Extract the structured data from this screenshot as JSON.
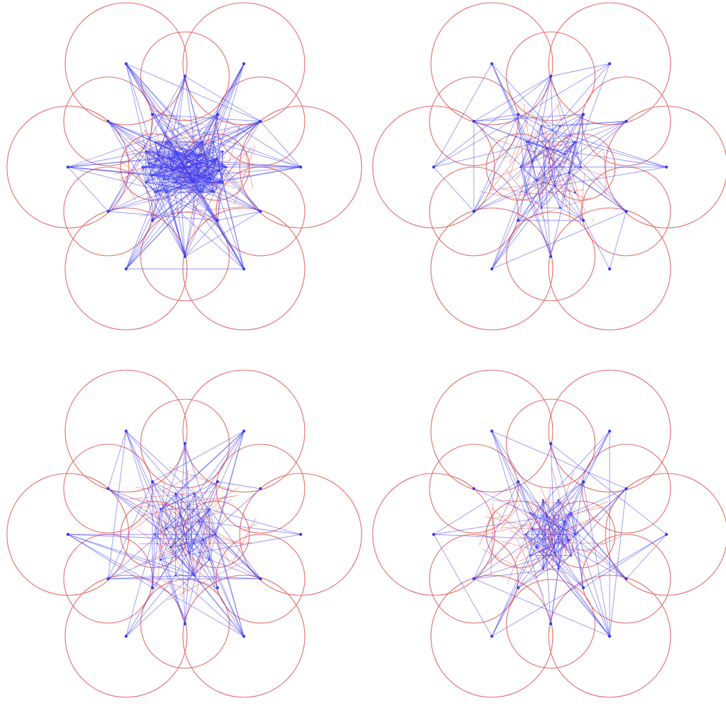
{
  "colors": {
    "circle": "#e46a6a",
    "edge": "#3b3bf0",
    "background": "#ffffff"
  },
  "panels": [
    {
      "id": "panel-1",
      "name": "graph-panel-top-left",
      "variant": 1
    },
    {
      "id": "panel-2",
      "name": "graph-panel-top-right",
      "variant": 2
    },
    {
      "id": "panel-3",
      "name": "graph-panel-bottom-left",
      "variant": 3
    },
    {
      "id": "panel-4",
      "name": "graph-panel-bottom-right",
      "variant": 4
    }
  ]
}
